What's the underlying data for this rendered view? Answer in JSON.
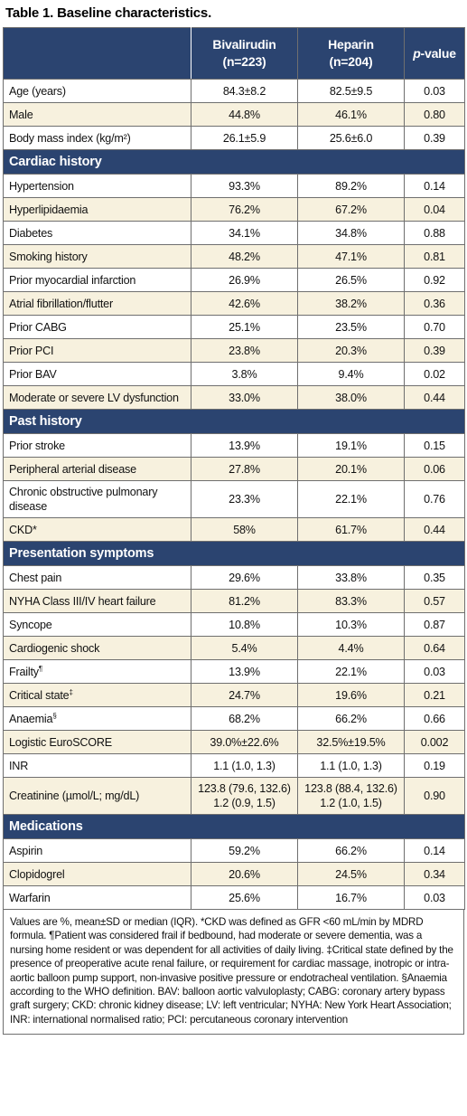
{
  "title": "Table 1. Baseline characteristics.",
  "header": {
    "col1": "",
    "bivalirudin": "Bivalirudin",
    "bivalirudin_n": "(n=223)",
    "heparin": "Heparin",
    "heparin_n": "(n=204)",
    "pvalue_italic": "p",
    "pvalue_rest": "-value"
  },
  "rows_top": [
    {
      "label": "Age (years)",
      "biv": "84.3±8.2",
      "hep": "82.5±9.5",
      "p": "0.03"
    },
    {
      "label": "Male",
      "biv": "44.8%",
      "hep": "46.1%",
      "p": "0.80"
    },
    {
      "label": "Body mass index (kg/m²)",
      "biv": "26.1±5.9",
      "hep": "25.6±6.0",
      "p": "0.39"
    }
  ],
  "sections": [
    {
      "title": "Cardiac history",
      "rows": [
        {
          "label": "Hypertension",
          "biv": "93.3%",
          "hep": "89.2%",
          "p": "0.14"
        },
        {
          "label": "Hyperlipidaemia",
          "biv": "76.2%",
          "hep": "67.2%",
          "p": "0.04"
        },
        {
          "label": "Diabetes",
          "biv": "34.1%",
          "hep": "34.8%",
          "p": "0.88"
        },
        {
          "label": "Smoking history",
          "biv": "48.2%",
          "hep": "47.1%",
          "p": "0.81"
        },
        {
          "label": "Prior myocardial infarction",
          "biv": "26.9%",
          "hep": "26.5%",
          "p": "0.92"
        },
        {
          "label": "Atrial fibrillation/flutter",
          "biv": "42.6%",
          "hep": "38.2%",
          "p": "0.36"
        },
        {
          "label": "Prior CABG",
          "biv": "25.1%",
          "hep": "23.5%",
          "p": "0.70"
        },
        {
          "label": "Prior PCI",
          "biv": "23.8%",
          "hep": "20.3%",
          "p": "0.39"
        },
        {
          "label": "Prior BAV",
          "biv": "3.8%",
          "hep": "9.4%",
          "p": "0.02"
        },
        {
          "label": "Moderate or severe LV dysfunction",
          "biv": "33.0%",
          "hep": "38.0%",
          "p": "0.44"
        }
      ]
    },
    {
      "title": "Past history",
      "rows": [
        {
          "label": "Prior stroke",
          "biv": "13.9%",
          "hep": "19.1%",
          "p": "0.15"
        },
        {
          "label": "Peripheral arterial disease",
          "biv": "27.8%",
          "hep": "20.1%",
          "p": "0.06"
        },
        {
          "label": "Chronic obstructive pulmonary disease",
          "biv": "23.3%",
          "hep": "22.1%",
          "p": "0.76",
          "tall": true
        },
        {
          "label": "CKD*",
          "biv": "58%",
          "hep": "61.7%",
          "p": "0.44"
        }
      ]
    },
    {
      "title": "Presentation symptoms",
      "rows": [
        {
          "label": "Chest pain",
          "biv": "29.6%",
          "hep": "33.8%",
          "p": "0.35"
        },
        {
          "label": "NYHA Class III/IV heart failure",
          "biv": "81.2%",
          "hep": "83.3%",
          "p": "0.57"
        },
        {
          "label": "Syncope",
          "biv": "10.8%",
          "hep": "10.3%",
          "p": "0.87"
        },
        {
          "label": "Cardiogenic shock",
          "biv": "5.4%",
          "hep": "4.4%",
          "p": "0.64"
        },
        {
          "label": "Frailty",
          "sup": "¶",
          "biv": "13.9%",
          "hep": "22.1%",
          "p": "0.03"
        },
        {
          "label": "Critical state",
          "sup": "‡",
          "biv": "24.7%",
          "hep": "19.6%",
          "p": "0.21"
        },
        {
          "label": "Anaemia",
          "sup": "§",
          "biv": "68.2%",
          "hep": "66.2%",
          "p": "0.66"
        },
        {
          "label": "Logistic EuroSCORE",
          "biv": "39.0%±22.6%",
          "hep": "32.5%±19.5%",
          "p": "0.002"
        },
        {
          "label": "INR",
          "biv": "1.1 (1.0, 1.3)",
          "hep": "1.1 (1.0, 1.3)",
          "p": "0.19"
        },
        {
          "label": "Creatinine (µmol/L; mg/dL)",
          "biv": "123.8 (79.6, 132.6)",
          "biv2": "1.2 (0.9, 1.5)",
          "hep": "123.8 (88.4, 132.6)",
          "hep2": "1.2 (1.0, 1.5)",
          "p": "0.90",
          "tall": true
        }
      ]
    },
    {
      "title": "Medications",
      "rows": [
        {
          "label": "Aspirin",
          "biv": "59.2%",
          "hep": "66.2%",
          "p": "0.14"
        },
        {
          "label": "Clopidogrel",
          "biv": "20.6%",
          "hep": "24.5%",
          "p": "0.34"
        },
        {
          "label": "Warfarin",
          "biv": "25.6%",
          "hep": "16.7%",
          "p": "0.03"
        }
      ]
    }
  ],
  "footnote": "Values are %, mean±SD or median (IQR). *CKD was defined as GFR <60 mL/min by MDRD formula. ¶Patient was considered frail if bedbound, had moderate or severe dementia, was a nursing home resident or was dependent for all activities of daily living. ‡Critical state defined by the presence of preoperative acute renal failure, or requirement for cardiac massage, inotropic or intra-aortic balloon pump support, non-invasive positive pressure or endotracheal ventilation. §Anaemia according to the WHO definition. BAV: balloon aortic valvuloplasty; CABG: coronary artery bypass graft surgery; CKD: chronic kidney disease; LV: left ventricular; NYHA: New York Heart Association; INR: international normalised ratio; PCI: percutaneous coronary intervention"
}
